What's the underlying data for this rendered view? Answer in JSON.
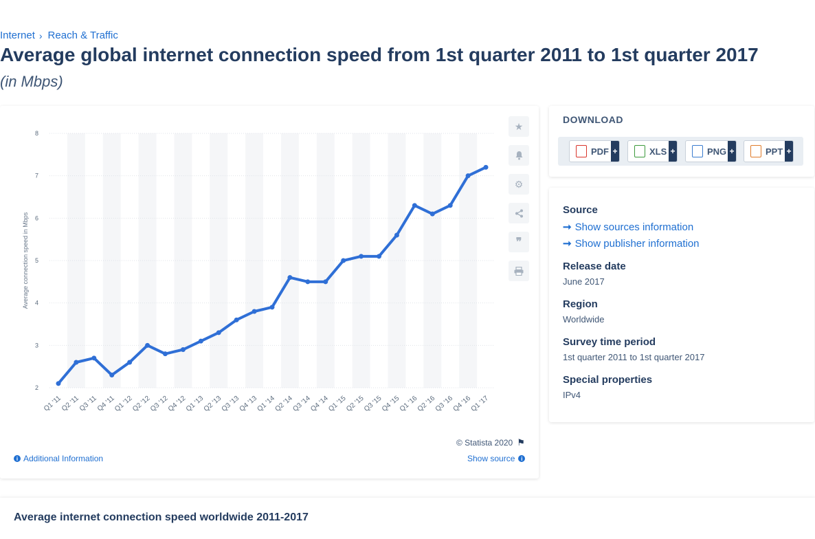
{
  "breadcrumb": {
    "item1": "Internet",
    "item2": "Reach & Traffic"
  },
  "page": {
    "title": "Average global internet connection speed from 1st quarter 2011 to 1st quarter 2017",
    "subtitle": "(in Mbps)"
  },
  "chart_data": {
    "type": "line",
    "title": "",
    "xlabel": "",
    "ylabel": "Average connection speed in Mbps",
    "ylim": [
      2,
      8
    ],
    "yticks": [
      2,
      3,
      4,
      5,
      6,
      7,
      8
    ],
    "grid": true,
    "categories": [
      "Q1 '11",
      "Q2 '11",
      "Q3 '11",
      "Q4 '11",
      "Q1 '12",
      "Q2 '12",
      "Q3 '12",
      "Q4 '12",
      "Q1 '13",
      "Q2 '13",
      "Q3 '13",
      "Q4 '13",
      "Q1 '14",
      "Q2 '14",
      "Q3 '14",
      "Q4 '14",
      "Q1 '15",
      "Q2 '15",
      "Q3 '15",
      "Q4 '15",
      "Q1 '16",
      "Q2 '16",
      "Q3 '16",
      "Q4 '16",
      "Q1 '17"
    ],
    "series": [
      {
        "values": [
          2.1,
          2.6,
          2.7,
          2.3,
          2.6,
          3.0,
          2.8,
          2.9,
          3.1,
          3.3,
          3.6,
          3.8,
          3.9,
          4.6,
          4.5,
          4.5,
          5.0,
          5.1,
          5.1,
          5.6,
          6.3,
          6.1,
          6.3,
          7.0,
          7.2
        ],
        "color": "#2f6fd6"
      }
    ]
  },
  "chart_footer": {
    "copyright": "© Statista 2020",
    "additional_info": "Additional Information",
    "show_source": "Show source"
  },
  "tools": [
    "star-icon",
    "bell-icon",
    "gear-icon",
    "share-icon",
    "quote-icon",
    "print-icon"
  ],
  "download": {
    "title": "DOWNLOAD",
    "buttons": [
      {
        "label": "PDF",
        "icon": "pdf-file-icon",
        "color": "#d9342b"
      },
      {
        "label": "XLS",
        "icon": "xls-file-icon",
        "color": "#3c9a3c"
      },
      {
        "label": "PNG",
        "icon": "png-file-icon",
        "color": "#3a7ccf"
      },
      {
        "label": "PPT",
        "icon": "ppt-file-icon",
        "color": "#e07b2a"
      }
    ],
    "plus": "+"
  },
  "info": {
    "source_label": "Source",
    "show_sources": "Show sources information",
    "show_publisher": "Show publisher information",
    "release_label": "Release date",
    "release_value": "June 2017",
    "region_label": "Region",
    "region_value": "Worldwide",
    "survey_label": "Survey time period",
    "survey_value": "1st quarter 2011 to 1st quarter 2017",
    "special_label": "Special properties",
    "special_value": "IPv4"
  },
  "related": {
    "title": "Average internet connection speed worldwide 2011-2017"
  }
}
